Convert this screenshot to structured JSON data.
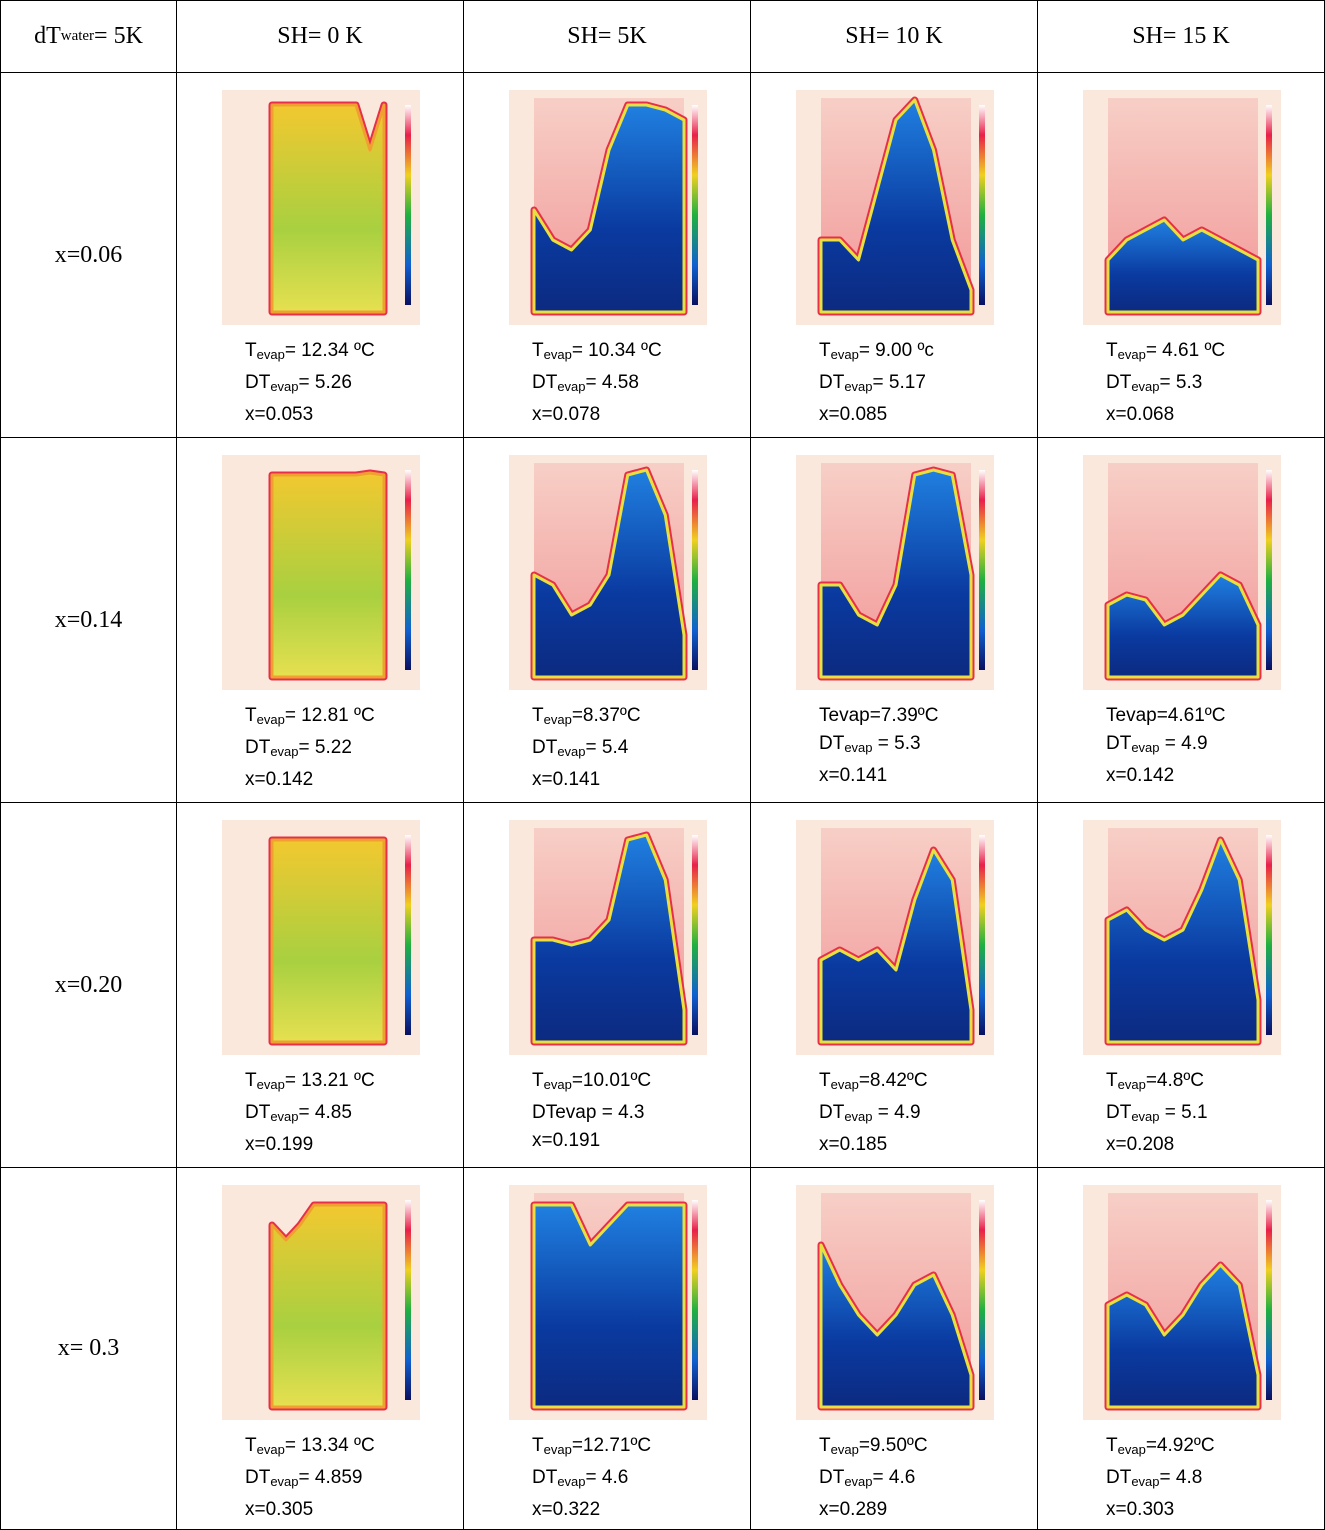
{
  "header": [
    {
      "main": "dT",
      "sub": "water",
      "tail": "= 5K"
    },
    "SH= 0 K",
    "SH= 5K",
    "SH= 10 K",
    "SH= 15 K"
  ],
  "rows": [
    {
      "label": "x=0.06",
      "cells": [
        [
          {
            "main": "T",
            "sub": "evap",
            "tail": "= 12.34 ºC"
          },
          {
            "main": "DT",
            "sub": "evap",
            "tail": "= 5.26"
          },
          "x=0.053"
        ],
        [
          {
            "main": "T",
            "sub": "evap",
            "tail": "= 10.34 ºC"
          },
          {
            "main": "DT",
            "sub": "evap",
            "tail": "= 4.58"
          },
          "x=0.078"
        ],
        [
          {
            "main": "T",
            "sub": "evap",
            "tail": "= 9.00 ºc"
          },
          {
            "main": "DT",
            "sub": "evap",
            "tail": "= 5.17"
          },
          "x=0.085"
        ],
        [
          {
            "main": "T",
            "sub": "evap",
            "tail": "= 4.61 ºC"
          },
          {
            "main": "DT",
            "sub": "evap",
            "tail": "= 5.3"
          },
          "x=0.068"
        ]
      ]
    },
    {
      "label": "x=0.14",
      "cells": [
        [
          {
            "main": "T",
            "sub": "evap",
            "tail": "= 12.81 ºC"
          },
          {
            "main": "DT",
            "sub": "evap",
            "tail": "= 5.22"
          },
          "x=0.142"
        ],
        [
          {
            "main": "T",
            "sub": "evap",
            "tail": "=8.37ºC"
          },
          {
            "main": "DT",
            "sub": "evap",
            "tail": "= 5.4"
          },
          "x=0.141"
        ],
        [
          "Tevap=7.39ºC",
          {
            "main": "DT",
            "sub": "evap",
            "tail": " = 5.3"
          },
          "x=0.141"
        ],
        [
          "Tevap=4.61ºC",
          {
            "main": "DT",
            "sub": "evap",
            "tail": " = 4.9"
          },
          "x=0.142"
        ]
      ]
    },
    {
      "label": "x=0.20",
      "cells": [
        [
          {
            "main": "T",
            "sub": "evap",
            "tail": "= 13.21 ºC"
          },
          {
            "main": "DT",
            "sub": "evap",
            "tail": "= 4.85"
          },
          "x=0.199"
        ],
        [
          {
            "main": "T",
            "sub": "evap",
            "tail": "=10.01ºC"
          },
          "DTevap = 4.3",
          "x=0.191"
        ],
        [
          {
            "main": "T",
            "sub": "evap",
            "tail": "=8.42ºC"
          },
          {
            "main": "DT",
            "sub": "evap",
            "tail": " = 4.9"
          },
          "x=0.185"
        ],
        [
          {
            "main": "T",
            "sub": "evap",
            "tail": "=4.8ºC"
          },
          {
            "main": "DT",
            "sub": "evap",
            "tail": " = 5.1"
          },
          "x=0.208"
        ]
      ]
    },
    {
      "label": "x= 0.3",
      "cells": [
        [
          {
            "main": "T",
            "sub": "evap",
            "tail": "= 13.34 ºC"
          },
          {
            "main": "DT",
            "sub": "evap",
            "tail": "= 4.859"
          },
          "x=0.305"
        ],
        [
          {
            "main": "T",
            "sub": "evap",
            "tail": "=12.71ºC"
          },
          {
            "main": "DT",
            "sub": "evap",
            "tail": "= 4.6"
          },
          "x=0.322"
        ],
        [
          {
            "main": "T",
            "sub": "evap",
            "tail": "=9.50ºC"
          },
          {
            "main": "DT",
            "sub": "evap",
            "tail": "= 4.6"
          },
          "x=0.289"
        ],
        [
          {
            "main": "T",
            "sub": "evap",
            "tail": "=4.92ºC"
          },
          {
            "main": "DT",
            "sub": "evap",
            "tail": "= 4.8"
          },
          "x=0.303"
        ]
      ]
    }
  ]
}
